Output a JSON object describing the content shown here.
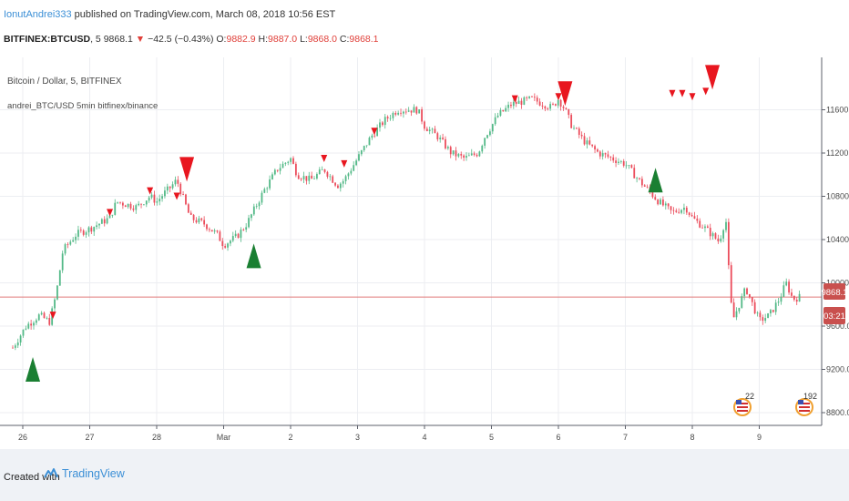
{
  "header": {
    "author": "IonutAndrei333",
    "published": " published on TradingView.com, March 08, 2018 10:56 EST"
  },
  "symbol_line": {
    "symbol": "BITFINEX:BTCUSD",
    "interval": ", 5",
    "last": "9868.1",
    "change": "−42.5 (−0.43%)",
    "o_label": "O:",
    "o_value": "9882.9",
    "h_label": "H:",
    "h_value": "9887.0",
    "l_label": "L:",
    "l_value": "9868.0",
    "c_label": "C:",
    "c_value": "9868.1"
  },
  "legend": {
    "title": "Bitcoin / Dollar, 5, BITFINEX",
    "indicator": "andrei_BTC/USD 5min bitfinex/binance"
  },
  "price_tag": {
    "value": "9868.1",
    "countdown": "03:21"
  },
  "events": {
    "us_flag_1_count": "22",
    "us_flag_2_count": "192"
  },
  "footer": {
    "created_with": "Created with",
    "brand": "TradingView"
  },
  "colors": {
    "up": "#53b987",
    "down": "#eb4d5c",
    "signal_buy": "#1a7f32",
    "signal_sell": "#e8161f",
    "price_line": "#e07a7a",
    "price_tag": "#c9504e"
  },
  "chart_data": {
    "type": "candlestick",
    "y_ticks": [
      "11600.0",
      "11200.0",
      "10800.0",
      "10400.0",
      "10000.0",
      "9600.0",
      "9200.0",
      "8800.0"
    ],
    "x_ticks": [
      "26",
      "27",
      "28",
      "Mar",
      "2",
      "3",
      "4",
      "5",
      "6",
      "7",
      "8",
      "9"
    ],
    "current_price": 9868.1,
    "price_path": [
      [
        25.85,
        9400
      ],
      [
        26.05,
        9600
      ],
      [
        26.25,
        9700
      ],
      [
        26.4,
        9640
      ],
      [
        26.5,
        9900
      ],
      [
        26.6,
        10300
      ],
      [
        26.8,
        10450
      ],
      [
        27.0,
        10500
      ],
      [
        27.3,
        10600
      ],
      [
        27.4,
        10750
      ],
      [
        27.7,
        10700
      ],
      [
        27.9,
        10800
      ],
      [
        28.0,
        10750
      ],
      [
        28.1,
        10820
      ],
      [
        28.2,
        10880
      ],
      [
        28.3,
        10950
      ],
      [
        28.5,
        10600
      ],
      [
        28.7,
        10550
      ],
      [
        28.9,
        10450
      ],
      [
        29.0,
        10350
      ],
      [
        29.2,
        10430
      ],
      [
        29.35,
        10550
      ],
      [
        29.6,
        10850
      ],
      [
        29.8,
        11050
      ],
      [
        30.0,
        11150
      ],
      [
        30.1,
        11000
      ],
      [
        30.3,
        10950
      ],
      [
        30.5,
        11050
      ],
      [
        30.7,
        10900
      ],
      [
        30.8,
        10950
      ],
      [
        31.0,
        11150
      ],
      [
        31.2,
        11350
      ],
      [
        31.4,
        11500
      ],
      [
        31.6,
        11600
      ],
      [
        31.9,
        11600
      ],
      [
        32.0,
        11450
      ],
      [
        32.2,
        11350
      ],
      [
        32.4,
        11200
      ],
      [
        32.6,
        11150
      ],
      [
        32.8,
        11200
      ],
      [
        32.9,
        11350
      ],
      [
        33.1,
        11550
      ],
      [
        33.3,
        11650
      ],
      [
        33.6,
        11700
      ],
      [
        33.9,
        11620
      ],
      [
        34.0,
        11700
      ],
      [
        34.1,
        11600
      ],
      [
        34.2,
        11450
      ],
      [
        34.4,
        11300
      ],
      [
        34.6,
        11200
      ],
      [
        34.8,
        11150
      ],
      [
        35.0,
        11100
      ],
      [
        35.2,
        10950
      ],
      [
        35.5,
        10750
      ],
      [
        35.7,
        10650
      ],
      [
        35.9,
        10700
      ],
      [
        36.0,
        10600
      ],
      [
        36.2,
        10500
      ],
      [
        36.4,
        10380
      ],
      [
        36.5,
        10600
      ],
      [
        36.55,
        10050
      ],
      [
        36.6,
        9650
      ],
      [
        36.7,
        9800
      ],
      [
        36.8,
        9950
      ],
      [
        36.9,
        9800
      ],
      [
        37.0,
        9650
      ],
      [
        37.15,
        9700
      ],
      [
        37.3,
        9850
      ],
      [
        37.4,
        10000
      ],
      [
        37.5,
        9850
      ],
      [
        37.6,
        9868
      ]
    ],
    "signals": [
      {
        "type": "buy",
        "x": 26.15,
        "y": 9200,
        "size": "large"
      },
      {
        "type": "buy",
        "x": 29.45,
        "y": 10250,
        "size": "large"
      },
      {
        "type": "buy",
        "x": 35.45,
        "y": 10950,
        "size": "large"
      },
      {
        "type": "sell",
        "x": 28.45,
        "y": 11050,
        "size": "large"
      },
      {
        "type": "sell",
        "x": 34.1,
        "y": 11750,
        "size": "large"
      },
      {
        "type": "sell",
        "x": 36.3,
        "y": 11900,
        "size": "large"
      },
      {
        "type": "sell",
        "x": 26.45,
        "y": 9700,
        "size": "small"
      },
      {
        "type": "sell",
        "x": 27.3,
        "y": 10650,
        "size": "small"
      },
      {
        "type": "sell",
        "x": 27.9,
        "y": 10850,
        "size": "small"
      },
      {
        "type": "sell",
        "x": 28.3,
        "y": 10800,
        "size": "small"
      },
      {
        "type": "sell",
        "x": 30.5,
        "y": 11150,
        "size": "small"
      },
      {
        "type": "sell",
        "x": 30.8,
        "y": 11100,
        "size": "small"
      },
      {
        "type": "sell",
        "x": 31.25,
        "y": 11400,
        "size": "small"
      },
      {
        "type": "sell",
        "x": 33.35,
        "y": 11700,
        "size": "small"
      },
      {
        "type": "sell",
        "x": 34.0,
        "y": 11720,
        "size": "small"
      },
      {
        "type": "sell",
        "x": 35.7,
        "y": 11750,
        "size": "small"
      },
      {
        "type": "sell",
        "x": 35.85,
        "y": 11750,
        "size": "small"
      },
      {
        "type": "sell",
        "x": 36.0,
        "y": 11720,
        "size": "small"
      },
      {
        "type": "sell",
        "x": 36.2,
        "y": 11770,
        "size": "small"
      }
    ]
  }
}
